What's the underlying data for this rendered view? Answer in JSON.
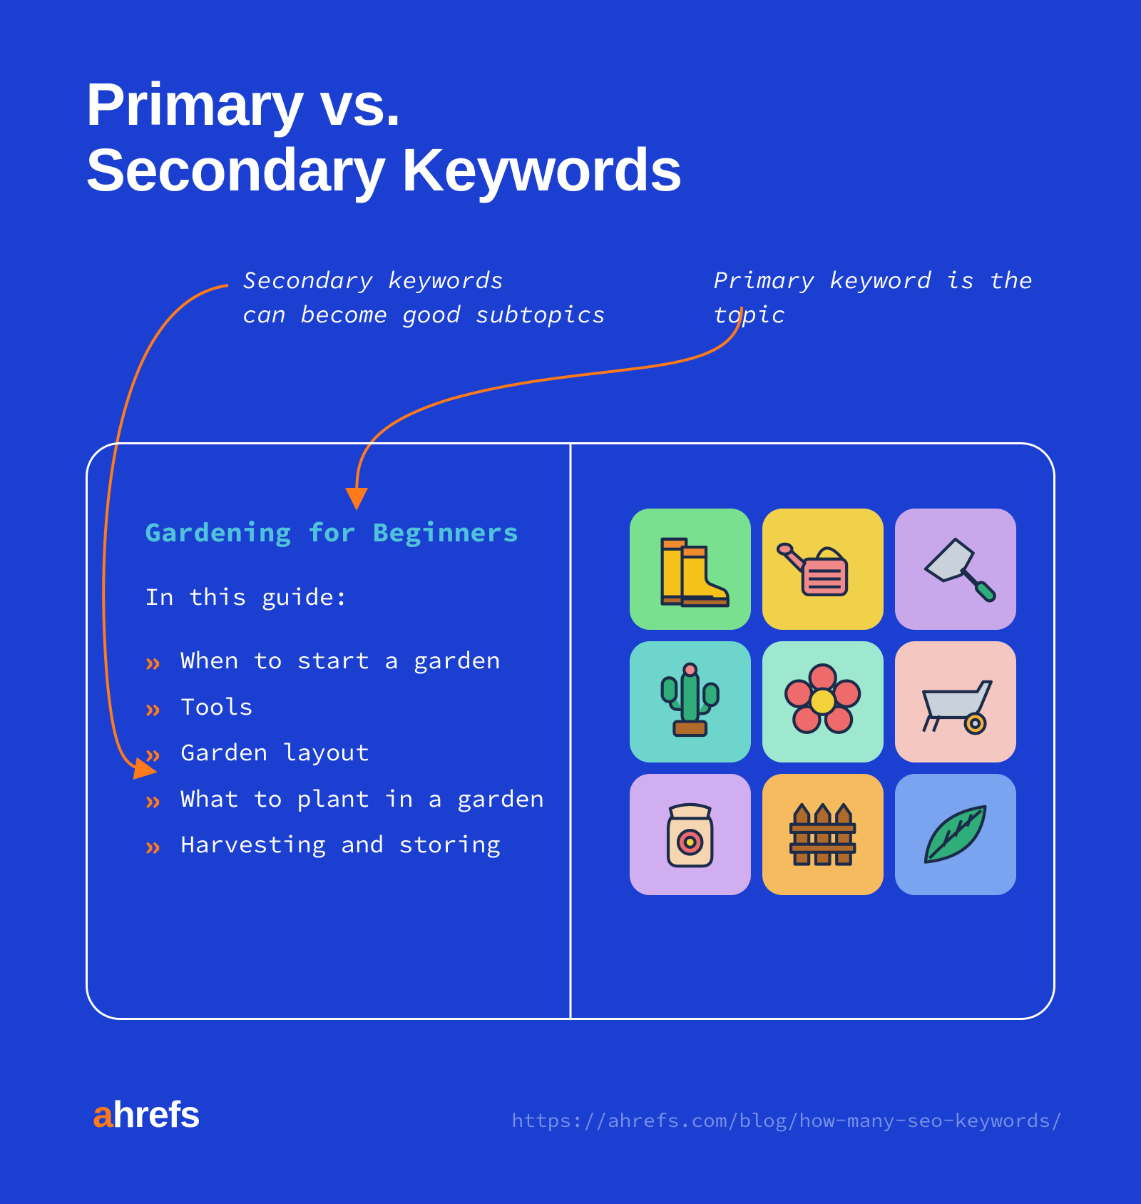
{
  "colors": {
    "background": "#1b3fd1",
    "text": "#ffffff",
    "accent_cyan": "#4fc3d9",
    "accent_orange": "#ff7a1a",
    "url": "#7890e8",
    "card_border": "#ffffff"
  },
  "title": "Primary vs.\nSecondary Keywords",
  "callouts": {
    "secondary": "Secondary keywords\ncan become good subtopics",
    "primary": "Primary keyword is the topic"
  },
  "card": {
    "topic_title": "Gardening for Beginners",
    "guide_label": "In this guide:",
    "items": [
      "When to start a garden",
      "Tools",
      "Garden layout",
      "What to plant in a garden",
      "Harvesting and storing"
    ]
  },
  "icon_tiles": [
    {
      "name": "boots",
      "bg": "#78e08f"
    },
    {
      "name": "wateringcan",
      "bg": "#f1d04a"
    },
    {
      "name": "trowel",
      "bg": "#c8a8ea"
    },
    {
      "name": "cactus",
      "bg": "#6dd5cc"
    },
    {
      "name": "flower",
      "bg": "#9de8cf"
    },
    {
      "name": "wheelbarrow",
      "bg": "#f4c7c0"
    },
    {
      "name": "seedbag",
      "bg": "#d1aef0"
    },
    {
      "name": "fence",
      "bg": "#f5bb5e"
    },
    {
      "name": "leaf",
      "bg": "#7aa3f0"
    }
  ],
  "logo": {
    "prefix": "a",
    "suffix": "hrefs"
  },
  "url": "https://ahrefs.com/blog/how-many-seo-keywords/",
  "arrows": {
    "color": "#ff7a1a",
    "stroke_width": 4
  }
}
